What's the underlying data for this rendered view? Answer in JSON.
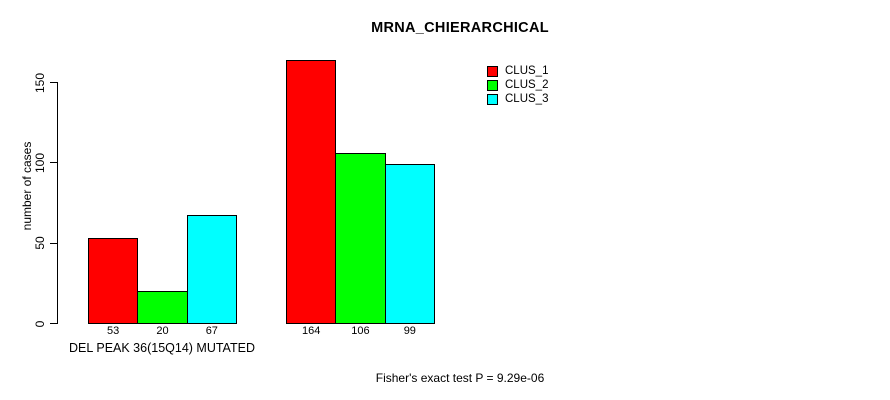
{
  "chart_data": {
    "type": "bar",
    "title": "MRNA_CHIERARCHICAL",
    "ylabel": "number of cases",
    "xlabel": "DEL PEAK 36(15Q14) MUTATED",
    "annotation": "Fisher's exact test P = 9.29e-06",
    "categories": [
      "DEL PEAK 36(15Q14) MUTATED",
      ""
    ],
    "series": [
      {
        "name": "CLUS_1",
        "color": "#ff0000",
        "values": [
          53,
          164
        ]
      },
      {
        "name": "CLUS_2",
        "color": "#00ff00",
        "values": [
          20,
          106
        ]
      },
      {
        "name": "CLUS_3",
        "color": "#00ffff",
        "values": [
          67,
          99
        ]
      }
    ],
    "ylim": [
      0,
      150
    ],
    "yticks": [
      0,
      50,
      100,
      150
    ],
    "bar_value_labels": true,
    "grid": false,
    "legend_position": "top-right",
    "axis_color": "#000000",
    "bar_border_color": "#000000"
  }
}
